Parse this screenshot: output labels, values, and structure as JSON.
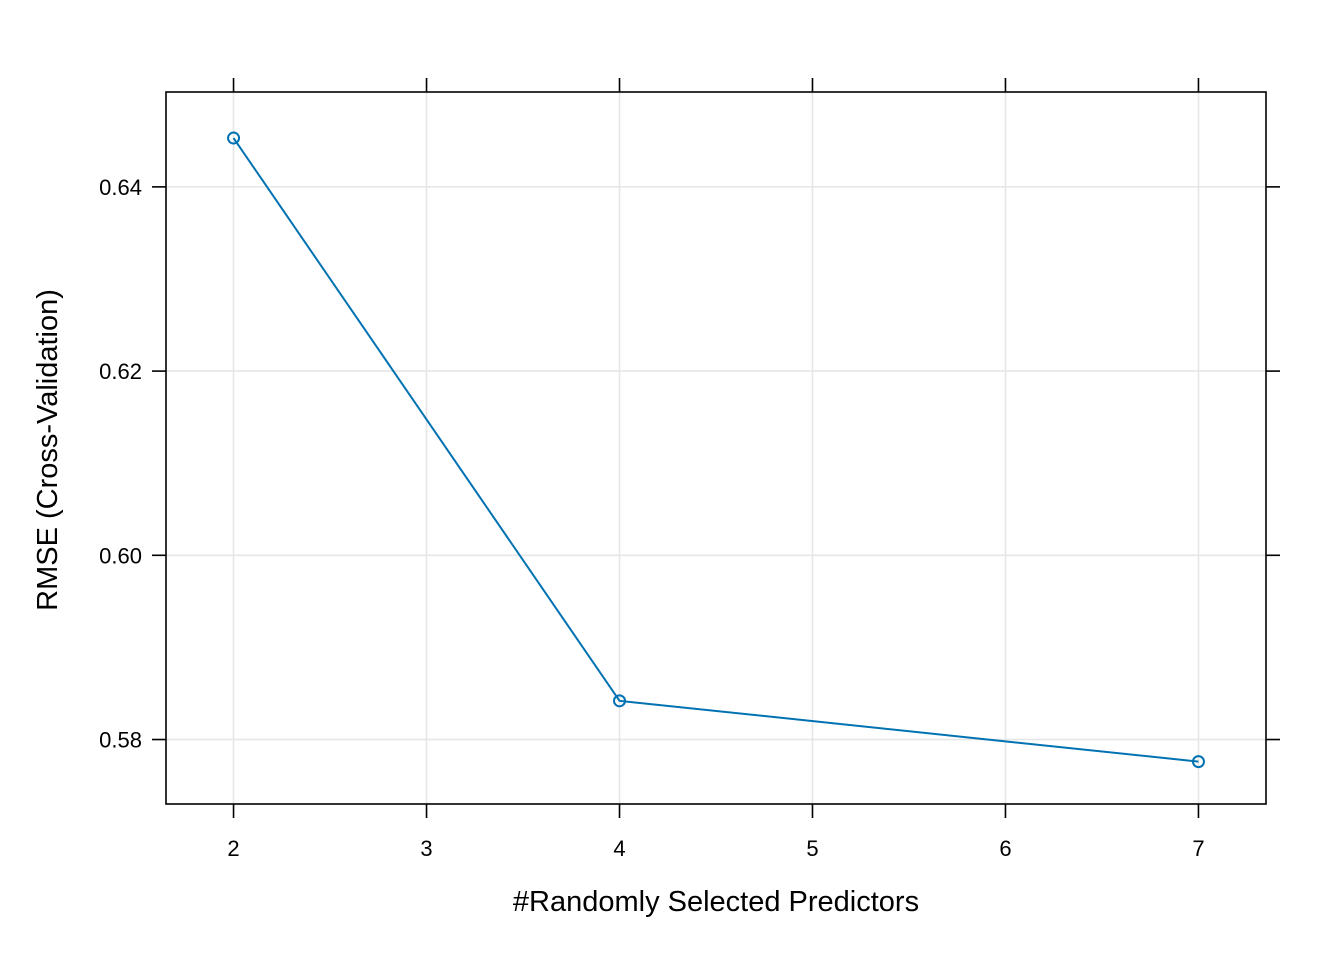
{
  "chart_data": {
    "type": "line",
    "title": "",
    "xlabel": "#Randomly Selected Predictors",
    "ylabel": "RMSE (Cross-Validation)",
    "x": [
      2,
      4,
      7
    ],
    "series": [
      {
        "values": [
          0.6453,
          0.5842,
          0.5776
        ]
      }
    ],
    "xlim": [
      1.65,
      7.35
    ],
    "ylim": [
      0.573,
      0.6503
    ],
    "xticks": [
      2,
      3,
      4,
      5,
      6,
      7
    ],
    "xtick_labels": [
      "2",
      "3",
      "4",
      "5",
      "6",
      "7"
    ],
    "yticks": [
      0.58,
      0.6,
      0.62,
      0.64
    ],
    "ytick_labels": [
      "0.58",
      "0.60",
      "0.62",
      "0.64"
    ],
    "grid": true,
    "legend": "none",
    "colors": {
      "line": "#0072B2",
      "grid": "#E6E6E6",
      "frame": "#000000"
    }
  }
}
